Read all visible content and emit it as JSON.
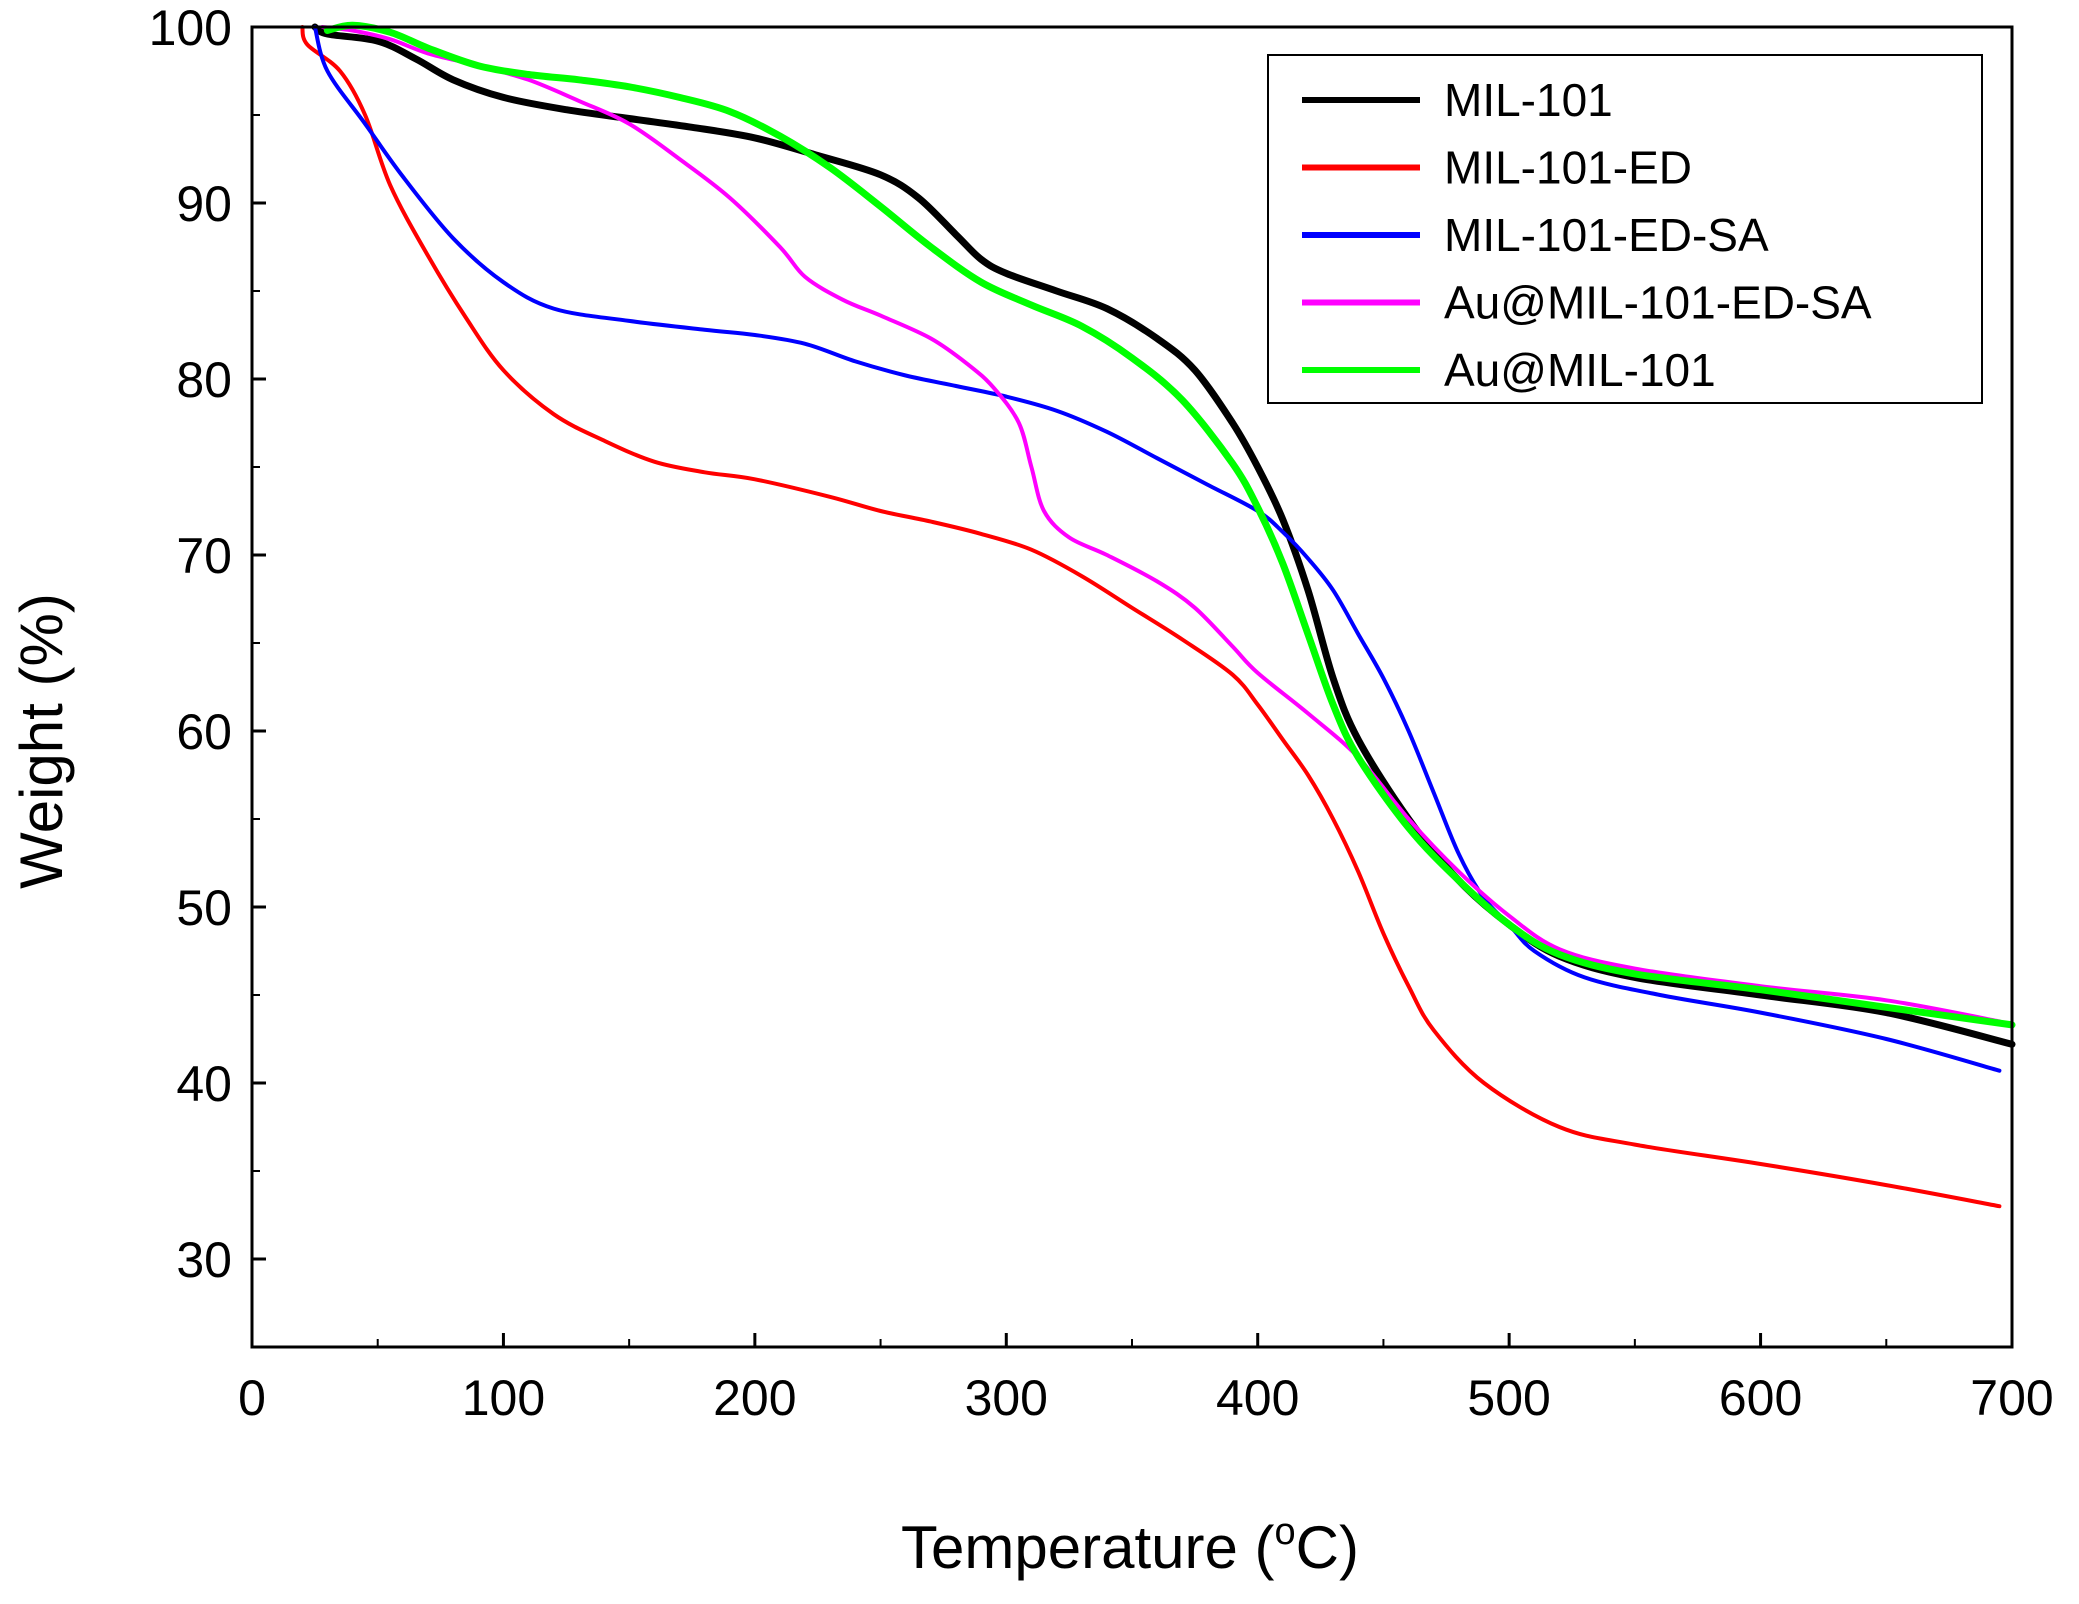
{
  "chart_data": {
    "type": "line",
    "title": "",
    "xlabel": "Temperature (",
    "xlabel_unit_super": "o",
    "xlabel_unit": "C)",
    "ylabel": "Weight (%)",
    "xlim": [
      0,
      700
    ],
    "ylim": [
      25,
      100
    ],
    "xticks": [
      0,
      100,
      200,
      300,
      400,
      500,
      600,
      700
    ],
    "yticks": [
      30,
      40,
      50,
      60,
      70,
      80,
      90,
      100
    ],
    "grid": false,
    "legend_position": "top-right",
    "series": [
      {
        "name": "MIL-101",
        "color": "#000000",
        "width": "thick",
        "points": [
          [
            25,
            100
          ],
          [
            30,
            99.6
          ],
          [
            50,
            99.2
          ],
          [
            65,
            98.2
          ],
          [
            80,
            97
          ],
          [
            100,
            96
          ],
          [
            125,
            95.3
          ],
          [
            150,
            94.8
          ],
          [
            175,
            94.3
          ],
          [
            200,
            93.7
          ],
          [
            225,
            92.7
          ],
          [
            250,
            91.6
          ],
          [
            265,
            90.3
          ],
          [
            280,
            88.2
          ],
          [
            290,
            86.8
          ],
          [
            300,
            86
          ],
          [
            320,
            85
          ],
          [
            340,
            84
          ],
          [
            360,
            82.3
          ],
          [
            375,
            80.5
          ],
          [
            390,
            77.5
          ],
          [
            400,
            75
          ],
          [
            410,
            72
          ],
          [
            420,
            68
          ],
          [
            430,
            63
          ],
          [
            440,
            59.5
          ],
          [
            460,
            55
          ],
          [
            480,
            51.5
          ],
          [
            500,
            49
          ],
          [
            520,
            47.2
          ],
          [
            550,
            46
          ],
          [
            600,
            45
          ],
          [
            650,
            44
          ],
          [
            700,
            42.2
          ]
        ]
      },
      {
        "name": "MIL-101-ED",
        "color": "#ff0000",
        "width": "normal",
        "points": [
          [
            20,
            100
          ],
          [
            22,
            99
          ],
          [
            35,
            97.5
          ],
          [
            45,
            95
          ],
          [
            55,
            91
          ],
          [
            70,
            87
          ],
          [
            85,
            83.5
          ],
          [
            100,
            80.5
          ],
          [
            120,
            78
          ],
          [
            140,
            76.5
          ],
          [
            160,
            75.3
          ],
          [
            180,
            74.7
          ],
          [
            200,
            74.3
          ],
          [
            230,
            73.3
          ],
          [
            250,
            72.5
          ],
          [
            270,
            71.9
          ],
          [
            290,
            71.2
          ],
          [
            310,
            70.3
          ],
          [
            330,
            68.8
          ],
          [
            350,
            67
          ],
          [
            370,
            65.2
          ],
          [
            390,
            63.2
          ],
          [
            400,
            61.5
          ],
          [
            410,
            59.5
          ],
          [
            420,
            57.5
          ],
          [
            430,
            55
          ],
          [
            440,
            52
          ],
          [
            450,
            48.5
          ],
          [
            460,
            45.5
          ],
          [
            470,
            43
          ],
          [
            490,
            40
          ],
          [
            520,
            37.5
          ],
          [
            550,
            36.5
          ],
          [
            600,
            35.4
          ],
          [
            650,
            34.2
          ],
          [
            695,
            33
          ]
        ]
      },
      {
        "name": "MIL-101-ED-SA",
        "color": "#0000ff",
        "width": "normal",
        "points": [
          [
            25,
            100
          ],
          [
            30,
            97.5
          ],
          [
            45,
            94.5
          ],
          [
            60,
            91.5
          ],
          [
            80,
            88
          ],
          [
            100,
            85.5
          ],
          [
            120,
            84
          ],
          [
            150,
            83.3
          ],
          [
            180,
            82.8
          ],
          [
            200,
            82.5
          ],
          [
            220,
            82
          ],
          [
            240,
            81
          ],
          [
            260,
            80.2
          ],
          [
            280,
            79.6
          ],
          [
            300,
            79
          ],
          [
            320,
            78.2
          ],
          [
            340,
            77
          ],
          [
            360,
            75.5
          ],
          [
            380,
            74
          ],
          [
            400,
            72.5
          ],
          [
            410,
            71.3
          ],
          [
            420,
            69.8
          ],
          [
            430,
            68
          ],
          [
            440,
            65.5
          ],
          [
            450,
            63
          ],
          [
            460,
            60
          ],
          [
            470,
            56.5
          ],
          [
            480,
            53
          ],
          [
            490,
            50.5
          ],
          [
            500,
            49
          ],
          [
            510,
            47.5
          ],
          [
            530,
            46
          ],
          [
            560,
            45
          ],
          [
            600,
            44
          ],
          [
            650,
            42.5
          ],
          [
            695,
            40.7
          ]
        ]
      },
      {
        "name": "Au@MIL-101-ED-SA",
        "color": "#ff00ff",
        "width": "normal",
        "points": [
          [
            28,
            100
          ],
          [
            40,
            99.8
          ],
          [
            55,
            99.3
          ],
          [
            70,
            98.5
          ],
          [
            90,
            97.8
          ],
          [
            110,
            97
          ],
          [
            130,
            95.8
          ],
          [
            150,
            94.5
          ],
          [
            170,
            92.5
          ],
          [
            190,
            90.3
          ],
          [
            210,
            87.5
          ],
          [
            220,
            85.8
          ],
          [
            235,
            84.5
          ],
          [
            250,
            83.6
          ],
          [
            270,
            82.3
          ],
          [
            285,
            80.8
          ],
          [
            295,
            79.5
          ],
          [
            305,
            77.5
          ],
          [
            310,
            75
          ],
          [
            315,
            72.5
          ],
          [
            325,
            71
          ],
          [
            340,
            70
          ],
          [
            360,
            68.5
          ],
          [
            375,
            67
          ],
          [
            390,
            64.8
          ],
          [
            400,
            63.3
          ],
          [
            420,
            61
          ],
          [
            440,
            58.5
          ],
          [
            460,
            55
          ],
          [
            480,
            52
          ],
          [
            500,
            49.5
          ],
          [
            520,
            47.6
          ],
          [
            550,
            46.5
          ],
          [
            600,
            45.5
          ],
          [
            650,
            44.7
          ],
          [
            695,
            43.5
          ]
        ]
      },
      {
        "name": "Au@MIL-101",
        "color": "#00ff00",
        "width": "thick",
        "points": [
          [
            30,
            99.8
          ],
          [
            40,
            100.1
          ],
          [
            55,
            99.7
          ],
          [
            70,
            98.8
          ],
          [
            90,
            97.8
          ],
          [
            110,
            97.3
          ],
          [
            130,
            97
          ],
          [
            150,
            96.6
          ],
          [
            170,
            96
          ],
          [
            190,
            95.2
          ],
          [
            210,
            93.8
          ],
          [
            230,
            92
          ],
          [
            250,
            89.8
          ],
          [
            270,
            87.5
          ],
          [
            290,
            85.5
          ],
          [
            310,
            84.2
          ],
          [
            330,
            83
          ],
          [
            350,
            81.2
          ],
          [
            370,
            78.8
          ],
          [
            390,
            75.2
          ],
          [
            400,
            72.7
          ],
          [
            410,
            69.5
          ],
          [
            420,
            65.5
          ],
          [
            430,
            61.5
          ],
          [
            440,
            58.5
          ],
          [
            460,
            54.5
          ],
          [
            480,
            51.5
          ],
          [
            500,
            49
          ],
          [
            520,
            47.3
          ],
          [
            550,
            46.2
          ],
          [
            600,
            45.3
          ],
          [
            650,
            44.3
          ],
          [
            700,
            43.3
          ]
        ]
      }
    ]
  }
}
